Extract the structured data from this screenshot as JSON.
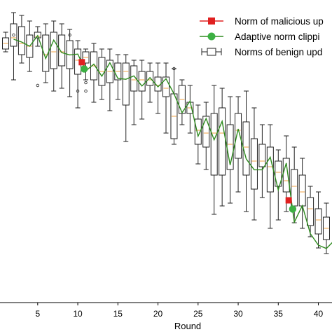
{
  "chart_data": {
    "type": "box",
    "title": "",
    "xlabel": "Round",
    "ylabel": "",
    "xlim": [
      0.3,
      41.7
    ],
    "ylim": [
      0,
      1
    ],
    "x_ticks": [
      5,
      10,
      15,
      20,
      25,
      30,
      35,
      40
    ],
    "grid": false,
    "legend_position": "top-right",
    "colors": {
      "malicious": "#e02020",
      "adaptive_line": "#2e8b1e",
      "adaptive_marker": "#3cb043",
      "box": "#222222",
      "median": "#f0a040"
    },
    "legend": [
      {
        "key": "malicious",
        "label": "Norm of malicious up",
        "marker": "square"
      },
      {
        "key": "adaptive",
        "label": "Adaptive norm clippi",
        "marker": "circle"
      },
      {
        "key": "benign",
        "label": "Norms of benign upd",
        "marker": "box"
      }
    ],
    "series": [
      {
        "name": "Norm of malicious up",
        "type": "scatter",
        "points": [
          [
            10.5,
            0.823
          ],
          [
            36.3,
            0.33
          ]
        ]
      },
      {
        "name": "Adaptive norm clippi",
        "type": "line",
        "x": [
          2,
          3,
          4,
          5,
          6,
          7,
          8,
          9,
          10,
          11,
          12,
          13,
          14,
          15,
          16,
          17,
          18,
          19,
          20,
          21,
          22,
          23,
          24,
          25,
          26,
          27,
          28,
          29,
          30,
          31,
          32,
          33,
          34,
          35,
          36,
          37,
          38,
          39,
          40,
          41,
          42
        ],
        "y": [
          0.905,
          0.895,
          0.88,
          0.918,
          0.836,
          0.902,
          0.857,
          0.849,
          0.852,
          0.792,
          0.816,
          0.773,
          0.821,
          0.765,
          0.762,
          0.774,
          0.738,
          0.768,
          0.735,
          0.764,
          0.71,
          0.643,
          0.684,
          0.559,
          0.622,
          0.546,
          0.612,
          0.456,
          0.585,
          0.478,
          0.439,
          0.439,
          0.484,
          0.367,
          0.463,
          0.252,
          0.311,
          0.211,
          0.17,
          0.158,
          0.187
        ],
        "marker_points": [
          [
            10.8,
            0.799
          ],
          [
            36.8,
            0.299
          ]
        ]
      },
      {
        "name": "Norms of benign upd",
        "type": "box",
        "boxes": [
          {
            "x": 1,
            "wmin": 0.86,
            "q1": 0.87,
            "median": 0.89,
            "q3": 0.91,
            "wmax": 0.93
          },
          {
            "x": 2,
            "wmin": 0.76,
            "q1": 0.88,
            "median": 0.91,
            "q3": 0.96,
            "wmax": 1.0,
            "outliers": [
              0.92
            ]
          },
          {
            "x": 3,
            "wmin": 0.82,
            "q1": 0.85,
            "median": 0.89,
            "q3": 0.95,
            "wmax": 0.99
          },
          {
            "x": 4,
            "wmin": 0.79,
            "q1": 0.84,
            "median": 0.88,
            "q3": 0.92,
            "wmax": 0.97
          },
          {
            "x": 5,
            "wmin": 0.88,
            "q1": 0.91,
            "median": 0.915,
            "q3": 0.93,
            "wmax": 0.95,
            "outliers": [
              0.74
            ]
          },
          {
            "x": 6,
            "wmin": 0.75,
            "q1": 0.79,
            "median": 0.85,
            "q3": 0.92,
            "wmax": 0.96
          },
          {
            "x": 7,
            "wmin": 0.72,
            "q1": 0.8,
            "median": 0.86,
            "q3": 0.93,
            "wmax": 0.97
          },
          {
            "x": 8,
            "wmin": 0.73,
            "q1": 0.81,
            "median": 0.86,
            "q3": 0.92,
            "wmax": 0.96
          },
          {
            "x": 9,
            "wmin": 0.7,
            "q1": 0.8,
            "median": 0.85,
            "q3": 0.9,
            "wmax": 0.94,
            "outliers": [
              0.92
            ]
          },
          {
            "x": 10,
            "wmin": 0.66,
            "q1": 0.78,
            "median": 0.83,
            "q3": 0.87,
            "wmax": 0.9,
            "outliers": [
              0.72
            ]
          },
          {
            "x": 11,
            "wmin": 0.76,
            "q1": 0.82,
            "median": 0.84,
            "q3": 0.86,
            "wmax": 0.87,
            "outliers": [
              0.75,
              0.72
            ]
          },
          {
            "x": 12,
            "wmin": 0.68,
            "q1": 0.76,
            "median": 0.81,
            "q3": 0.86,
            "wmax": 0.89
          },
          {
            "x": 13,
            "wmin": 0.69,
            "q1": 0.74,
            "median": 0.79,
            "q3": 0.84,
            "wmax": 0.87
          },
          {
            "x": 14,
            "wmin": 0.65,
            "q1": 0.75,
            "median": 0.79,
            "q3": 0.83,
            "wmax": 0.87
          },
          {
            "x": 15,
            "wmin": 0.69,
            "q1": 0.76,
            "median": 0.79,
            "q3": 0.82,
            "wmax": 0.85
          },
          {
            "x": 16,
            "wmin": 0.54,
            "q1": 0.67,
            "median": 0.79,
            "q3": 0.82,
            "wmax": 0.85
          },
          {
            "x": 17,
            "wmin": 0.6,
            "q1": 0.72,
            "median": 0.76,
            "q3": 0.81,
            "wmax": 0.83
          },
          {
            "x": 18,
            "wmin": 0.62,
            "q1": 0.72,
            "median": 0.76,
            "q3": 0.79,
            "wmax": 0.83
          },
          {
            "x": 19,
            "wmin": 0.68,
            "q1": 0.74,
            "median": 0.76,
            "q3": 0.79,
            "wmax": 0.82
          },
          {
            "x": 20,
            "wmin": 0.64,
            "q1": 0.72,
            "median": 0.74,
            "q3": 0.77,
            "wmax": 0.82
          },
          {
            "x": 21,
            "wmin": 0.57,
            "q1": 0.7,
            "median": 0.73,
            "q3": 0.77,
            "wmax": 0.82
          },
          {
            "x": 22,
            "wmin": 0.53,
            "q1": 0.55,
            "median": 0.63,
            "q3": 0.71,
            "wmax": 0.8,
            "outliers": [
              0.8
            ]
          },
          {
            "x": 23,
            "wmin": 0.6,
            "q1": 0.64,
            "median": 0.69,
            "q3": 0.74,
            "wmax": 0.76
          },
          {
            "x": 24,
            "wmin": 0.57,
            "q1": 0.64,
            "median": 0.66,
            "q3": 0.68,
            "wmax": 0.74
          },
          {
            "x": 25,
            "wmin": 0.46,
            "q1": 0.53,
            "median": 0.58,
            "q3": 0.62,
            "wmax": 0.67
          },
          {
            "x": 26,
            "wmin": 0.44,
            "q1": 0.52,
            "median": 0.57,
            "q3": 0.63,
            "wmax": 0.68
          },
          {
            "x": 27,
            "wmin": 0.28,
            "q1": 0.42,
            "median": 0.57,
            "q3": 0.64,
            "wmax": 0.74
          },
          {
            "x": 28,
            "wmin": 0.31,
            "q1": 0.42,
            "median": 0.57,
            "q3": 0.66,
            "wmax": 0.73
          },
          {
            "x": 29,
            "wmin": 0.32,
            "q1": 0.44,
            "median": 0.53,
            "q3": 0.6,
            "wmax": 0.7
          },
          {
            "x": 30,
            "wmin": 0.36,
            "q1": 0.48,
            "median": 0.58,
            "q3": 0.64,
            "wmax": 0.7
          },
          {
            "x": 31,
            "wmin": 0.29,
            "q1": 0.42,
            "median": 0.52,
            "q3": 0.61,
            "wmax": 0.72
          },
          {
            "x": 32,
            "wmin": 0.26,
            "q1": 0.37,
            "median": 0.47,
            "q3": 0.55,
            "wmax": 0.66
          },
          {
            "x": 33,
            "wmin": 0.34,
            "q1": 0.45,
            "median": 0.47,
            "q3": 0.53,
            "wmax": 0.6
          },
          {
            "x": 34,
            "wmin": 0.23,
            "q1": 0.36,
            "median": 0.45,
            "q3": 0.52,
            "wmax": 0.6
          },
          {
            "x": 35,
            "wmin": 0.26,
            "q1": 0.38,
            "median": 0.43,
            "q3": 0.47,
            "wmax": 0.51
          },
          {
            "x": 36,
            "wmin": 0.29,
            "q1": 0.36,
            "median": 0.4,
            "q3": 0.48,
            "wmax": 0.56
          },
          {
            "x": 37,
            "wmin": 0.25,
            "q1": 0.31,
            "median": 0.38,
            "q3": 0.44,
            "wmax": 0.52
          },
          {
            "x": 38,
            "wmin": 0.23,
            "q1": 0.31,
            "median": 0.36,
            "q3": 0.42,
            "wmax": 0.48
          },
          {
            "x": 39,
            "wmin": 0.2,
            "q1": 0.24,
            "median": 0.3,
            "q3": 0.34,
            "wmax": 0.38
          },
          {
            "x": 40,
            "wmin": 0.16,
            "q1": 0.21,
            "median": 0.26,
            "q3": 0.3,
            "wmax": 0.36
          },
          {
            "x": 41,
            "wmin": 0.14,
            "q1": 0.19,
            "median": 0.23,
            "q3": 0.27,
            "wmax": 0.32
          }
        ]
      }
    ]
  }
}
